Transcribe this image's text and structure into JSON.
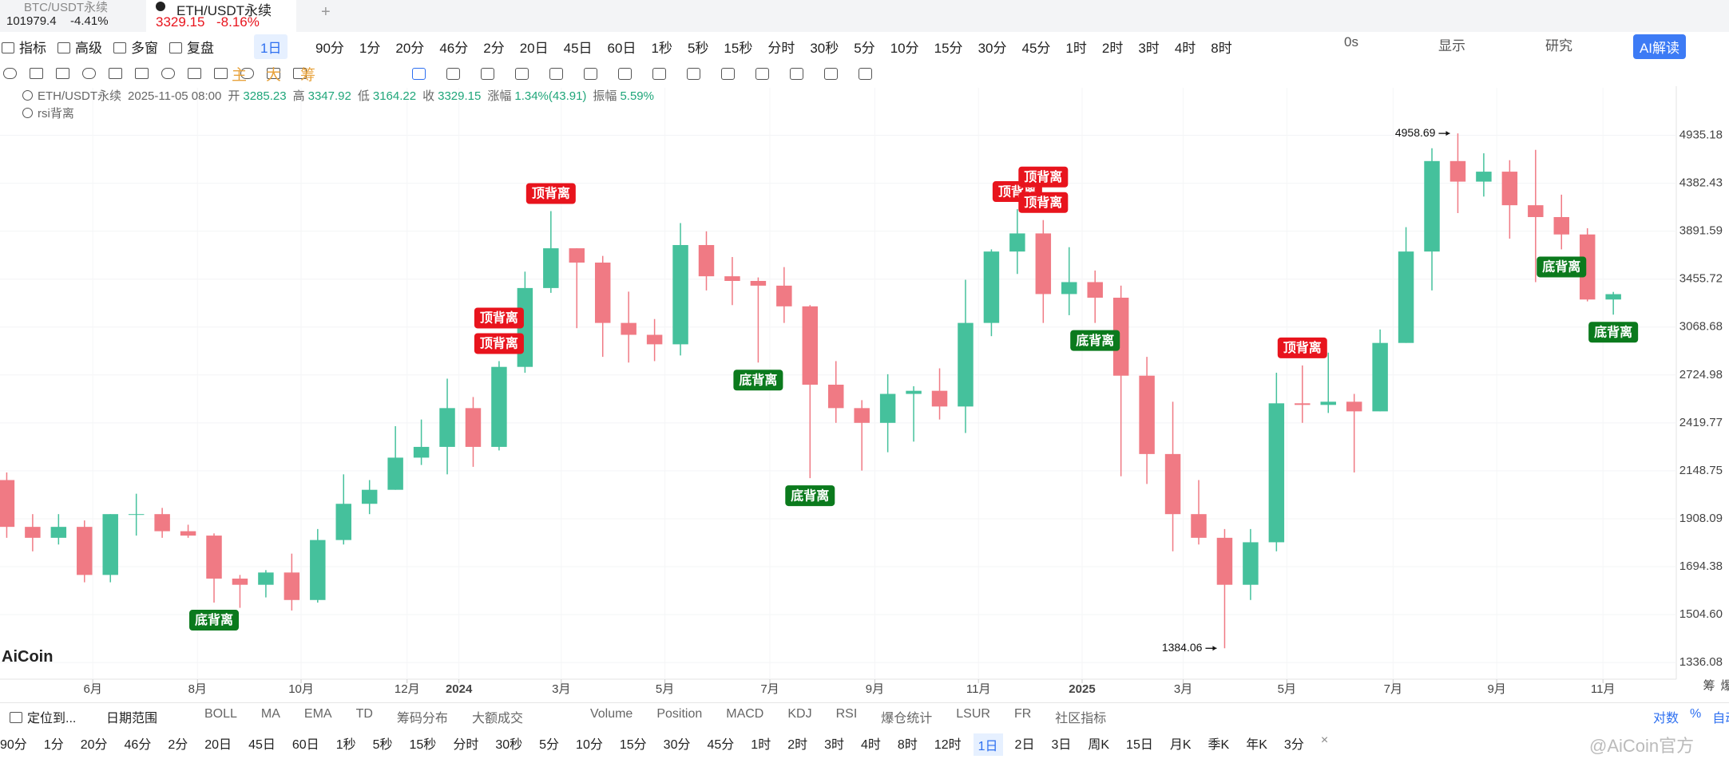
{
  "tabs": [
    {
      "symbol": "BTC/USDT永续",
      "price": "101979.4",
      "change": "-4.41%"
    },
    {
      "symbol": "ETH/USDT永续",
      "price": "3329.15",
      "change": "-8.16%"
    }
  ],
  "toolbar": {
    "tools": [
      "指标",
      "高级",
      "多窗",
      "复盘"
    ],
    "active_interval": "1日",
    "intervals": [
      "90分",
      "1分",
      "20分",
      "46分",
      "2分",
      "20日",
      "45日",
      "60日",
      "1秒",
      "5秒",
      "15秒",
      "分时",
      "30秒",
      "5分",
      "10分",
      "15分",
      "30分",
      "45分",
      "1时",
      "2时",
      "3时",
      "4时",
      "8时"
    ],
    "right": [
      "0s",
      "显示",
      "研究",
      "AI解读"
    ]
  },
  "draw_toolbar": {
    "labels": [
      "主",
      "大",
      "筹"
    ]
  },
  "chart_data": {
    "type": "candlestick",
    "symbol": "ETH/USDT永续",
    "time": "2025-11-05 08:00",
    "info_labels": {
      "open": "开",
      "high": "高",
      "low": "低",
      "close": "收",
      "change": "涨幅",
      "amplitude": "振幅"
    },
    "change_text": "1.34%(43.91)",
    "amplitude_text": "5.59%",
    "indicator": "rsi背离",
    "open": [
      2100,
      1870,
      1820,
      1870,
      1660,
      1930,
      1930,
      1850,
      1830,
      1645,
      1620,
      1670,
      1560,
      1810,
      1980,
      2050,
      2220,
      2280,
      2510,
      2280,
      2780,
      3380,
      3730,
      3600,
      3100,
      3010,
      2940,
      3760,
      3480,
      3440,
      3400,
      3230,
      2660,
      2510,
      2420,
      2600,
      2620,
      2520,
      3100,
      3700,
      3870,
      3330,
      3430,
      3300,
      2720,
      2240,
      1930,
      1820,
      1620,
      1800,
      2540,
      2530,
      2550,
      2490,
      2950,
      3700,
      4630,
      4400,
      4510,
      4150,
      4030,
      3860,
      3285.23
    ],
    "high": [
      2140,
      1930,
      1930,
      1900,
      1930,
      2030,
      1960,
      1880,
      1840,
      1660,
      1680,
      1750,
      1860,
      2130,
      2100,
      2400,
      2440,
      2700,
      2580,
      2820,
      3520,
      4090,
      3730,
      3660,
      3350,
      3130,
      3970,
      3890,
      3650,
      3470,
      3560,
      3240,
      2820,
      2560,
      2730,
      2650,
      2770,
      3450,
      3720,
      4110,
      4000,
      3740,
      3530,
      3400,
      2850,
      2550,
      2100,
      1860,
      1860,
      2740,
      2790,
      2880,
      2600,
      3050,
      3930,
      4780,
      4958.69,
      4720,
      4640,
      4760,
      4260,
      3920,
      3347.92
    ],
    "low": [
      1820,
      1760,
      1790,
      1630,
      1630,
      1830,
      1820,
      1820,
      1550,
      1530,
      1570,
      1520,
      1550,
      1790,
      1930,
      2050,
      2180,
      2130,
      2170,
      2260,
      2740,
      3340,
      3060,
      2850,
      2810,
      2820,
      2860,
      3360,
      3240,
      2810,
      3100,
      2110,
      2420,
      2150,
      2250,
      2310,
      2440,
      2360,
      3000,
      3500,
      3100,
      3160,
      3100,
      2120,
      2080,
      1760,
      1790,
      1384.06,
      1560,
      1760,
      2420,
      2480,
      2140,
      2490,
      2950,
      3360,
      4070,
      4240,
      3820,
      3430,
      3720,
      3270,
      3164.22
    ],
    "close": [
      1870,
      1820,
      1870,
      1660,
      1930,
      1930,
      1850,
      1830,
      1645,
      1620,
      1670,
      1560,
      1810,
      1980,
      2050,
      2220,
      2280,
      2510,
      2280,
      2780,
      3380,
      3730,
      3600,
      3100,
      3010,
      2940,
      3760,
      3480,
      3440,
      3400,
      3230,
      2660,
      2510,
      2420,
      2600,
      2620,
      2520,
      3100,
      3700,
      3870,
      3330,
      3430,
      3300,
      2720,
      2240,
      1930,
      1820,
      1620,
      1800,
      2540,
      2530,
      2550,
      2490,
      2950,
      3700,
      4630,
      4400,
      4510,
      4150,
      4030,
      3860,
      3285.23,
      3329.15
    ],
    "colors": {
      "up": "#45c19c",
      "down": "#f07a84"
    },
    "log_scale": true,
    "grid": true,
    "ylim": [
      1282,
      5552
    ],
    "yticks": [
      4935.18,
      4382.43,
      3891.59,
      3455.72,
      3068.68,
      2724.98,
      2419.77,
      2148.75,
      1908.09,
      1694.38,
      {
        "value": 1504.6,
        "label": "1504.60"
      },
      1336.08
    ],
    "xlim": [
      -0.26,
      64.43
    ],
    "xticks": [
      {
        "value": 3.32,
        "label": "6月"
      },
      {
        "value": 7.36,
        "label": "8月"
      },
      {
        "value": 11.36,
        "label": "10月"
      },
      {
        "value": 15.45,
        "label": "12月"
      },
      {
        "value": 17.45,
        "label": "2024"
      },
      {
        "value": 21.4,
        "label": "3月"
      },
      {
        "value": 25.4,
        "label": "5月"
      },
      {
        "value": 29.45,
        "label": "7月"
      },
      {
        "value": 33.5,
        "label": "9月"
      },
      {
        "value": 37.5,
        "label": "11月"
      },
      {
        "value": 41.5,
        "label": "2025"
      },
      {
        "value": 45.4,
        "label": "3月"
      },
      {
        "value": 49.4,
        "label": "5月"
      },
      {
        "value": 53.5,
        "label": "7月"
      },
      {
        "value": 57.5,
        "label": "9月"
      },
      {
        "value": 61.6,
        "label": "11月"
      }
    ],
    "top_divergence": {
      "label": "顶背离",
      "color": "#e8141d",
      "at": [
        19,
        19,
        21,
        39,
        40,
        40,
        50
      ]
    },
    "bottom_divergence": {
      "label": "底背离",
      "color": "#0b7a1d",
      "at": [
        8,
        29,
        31,
        42,
        60,
        62
      ]
    }
  },
  "logo": "AiCoin",
  "side_labels": [
    "筹",
    "爆"
  ],
  "bottom_bar": {
    "locate": "定位到...",
    "date_range": "日期范围",
    "indicators": [
      "BOLL",
      "MA",
      "EMA",
      "TD",
      "筹码分布",
      "大额成交",
      "Volume",
      "Position",
      "MACD",
      "KDJ",
      "RSI",
      "爆仓统计",
      "LSUR",
      "FR",
      "社区指标"
    ],
    "right": [
      "对数",
      "%",
      "自动"
    ],
    "intervals": [
      "90分",
      "1分",
      "20分",
      "46分",
      "2分",
      "20日",
      "45日",
      "60日",
      "1秒",
      "5秒",
      "15秒",
      "分时",
      "30秒",
      "5分",
      "10分",
      "15分",
      "30分",
      "45分",
      "1时",
      "2时",
      "3时",
      "4时",
      "8时",
      "12时",
      "1日",
      "2日",
      "3日",
      "周K",
      "15日",
      "月K",
      "季K",
      "年K",
      "3分"
    ],
    "active": 24
  },
  "watermark": "@AiCoin官方"
}
